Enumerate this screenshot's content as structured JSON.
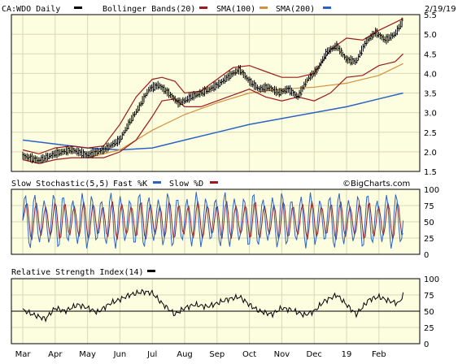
{
  "header": {
    "symbol": "CA:WDO Daily",
    "legend": [
      "Bollinger Bands(20)",
      "SMA(100)",
      "SMA(200)"
    ],
    "date": "2/19/19"
  },
  "colors": {
    "panel_bg": "#fdfde0",
    "grid": "#d8d8b8",
    "price": "#000000",
    "bollinger": "#9b1b1b",
    "sma100": "#d2913c",
    "sma200": "#2b63c4",
    "fast_k": "#2b63c4",
    "slow_d": "#9b1b1b",
    "rsi": "#000000"
  },
  "stoch_panel": {
    "title": "Slow Stochastic(5,5)",
    "fast_label": "Fast %K",
    "slow_label": "Slow %D",
    "watermark": "©BigCharts.com"
  },
  "rsi_panel": {
    "title": "Relative Strength Index(14)"
  },
  "chart_data": [
    {
      "type": "line",
      "title": "CA:WDO Daily",
      "x_labels": [
        "Mar",
        "Apr",
        "May",
        "Jun",
        "Jul",
        "Aug",
        "Sep",
        "Oct",
        "Nov",
        "Dec",
        "19",
        "Feb"
      ],
      "ylim": [
        1.5,
        5.5
      ],
      "yticks": [
        "5.5",
        "5.0",
        "4.5",
        "4.0",
        "3.5",
        "3.0",
        "2.5",
        "2.0",
        "1.5"
      ],
      "grid": true,
      "series": [
        {
          "name": "CA:WDO Daily",
          "style": "ohlc",
          "x_months": [
            0,
            0.5,
            1.0,
            1.5,
            2.0,
            2.5,
            3.0,
            3.3,
            3.6,
            3.9,
            4.2,
            4.5,
            4.8,
            5.0,
            5.2,
            5.5,
            5.8,
            6.1,
            6.4,
            6.7,
            7.0,
            7.3,
            7.6,
            7.9,
            8.2,
            8.5,
            8.8,
            9.1,
            9.4,
            9.7,
            10.0,
            10.3,
            10.6,
            10.9,
            11.2,
            11.5,
            11.75
          ],
          "values": [
            1.9,
            1.78,
            1.95,
            2.05,
            1.92,
            2.05,
            2.3,
            2.75,
            3.15,
            3.6,
            3.7,
            3.5,
            3.25,
            3.3,
            3.4,
            3.5,
            3.6,
            3.75,
            3.95,
            4.1,
            3.8,
            3.6,
            3.65,
            3.5,
            3.6,
            3.4,
            3.85,
            4.1,
            4.55,
            4.7,
            4.35,
            4.3,
            4.8,
            5.05,
            4.85,
            5.0,
            5.35
          ]
        },
        {
          "name": "Bollinger Bands(20) upper",
          "x_months": [
            0,
            0.5,
            1.0,
            1.5,
            2.0,
            2.5,
            3.0,
            3.5,
            4.0,
            4.3,
            4.7,
            5.0,
            5.5,
            6.0,
            6.5,
            7.0,
            7.5,
            8.0,
            8.5,
            9.0,
            9.5,
            10.0,
            10.5,
            11.0,
            11.5,
            11.75
          ],
          "values": [
            2.05,
            1.95,
            2.1,
            2.15,
            2.1,
            2.15,
            2.7,
            3.4,
            3.85,
            3.9,
            3.8,
            3.5,
            3.55,
            3.85,
            4.15,
            4.2,
            4.05,
            3.9,
            3.9,
            4.0,
            4.6,
            4.9,
            4.85,
            5.1,
            5.3,
            5.4
          ]
        },
        {
          "name": "Bollinger Bands(20) lower",
          "x_months": [
            0,
            0.5,
            1.0,
            1.5,
            2.0,
            2.5,
            3.0,
            3.5,
            4.0,
            4.3,
            4.7,
            5.0,
            5.5,
            6.0,
            6.5,
            7.0,
            7.5,
            8.0,
            8.5,
            9.0,
            9.5,
            10.0,
            10.5,
            11.0,
            11.5,
            11.75
          ],
          "values": [
            1.8,
            1.7,
            1.8,
            1.85,
            1.85,
            1.85,
            2.0,
            2.3,
            2.9,
            3.3,
            3.35,
            3.15,
            3.15,
            3.3,
            3.45,
            3.6,
            3.4,
            3.3,
            3.4,
            3.3,
            3.5,
            3.9,
            3.95,
            4.2,
            4.3,
            4.5
          ]
        },
        {
          "name": "SMA(100)",
          "x_months": [
            2.0,
            3.0,
            4.0,
            5.0,
            6.0,
            7.0,
            8.0,
            9.0,
            10.0,
            11.0,
            11.75
          ],
          "values": [
            1.85,
            2.05,
            2.55,
            2.95,
            3.25,
            3.5,
            3.6,
            3.65,
            3.75,
            3.95,
            4.25
          ]
        },
        {
          "name": "SMA(200)",
          "x_months": [
            0,
            1.0,
            2.0,
            3.0,
            4.0,
            5.0,
            6.0,
            7.0,
            8.0,
            9.0,
            10.0,
            11.0,
            11.75
          ],
          "values": [
            2.3,
            2.2,
            2.1,
            2.05,
            2.1,
            2.3,
            2.5,
            2.7,
            2.85,
            3.0,
            3.15,
            3.35,
            3.5
          ]
        }
      ]
    },
    {
      "type": "line",
      "title": "Slow Stochastic(5,5)",
      "ylim": [
        0,
        100
      ],
      "yticks": [
        "100",
        "75",
        "50",
        "25",
        "0"
      ],
      "oscillation": {
        "cycles": 40,
        "min": 8,
        "max": 96
      },
      "series": [
        {
          "name": "Fast %K"
        },
        {
          "name": "Slow %D"
        }
      ]
    },
    {
      "type": "line",
      "title": "Relative Strength Index(14)",
      "ylim": [
        0,
        100
      ],
      "yticks": [
        "100",
        "75",
        "50",
        "25",
        "0"
      ],
      "reference_line": 50,
      "series": [
        {
          "name": "Relative Strength Index(14)",
          "x_months": [
            0,
            0.3,
            0.7,
            1.0,
            1.3,
            1.7,
            2.0,
            2.3,
            2.7,
            3.0,
            3.3,
            3.7,
            4.0,
            4.3,
            4.7,
            5.0,
            5.3,
            5.7,
            6.0,
            6.3,
            6.7,
            7.0,
            7.3,
            7.7,
            8.0,
            8.3,
            8.7,
            9.0,
            9.3,
            9.7,
            10.0,
            10.3,
            10.7,
            11.0,
            11.3,
            11.6,
            11.75
          ],
          "values": [
            52,
            45,
            38,
            55,
            50,
            60,
            55,
            48,
            62,
            68,
            75,
            80,
            78,
            62,
            45,
            55,
            60,
            57,
            62,
            68,
            72,
            60,
            50,
            45,
            55,
            52,
            44,
            50,
            65,
            75,
            60,
            45,
            68,
            72,
            66,
            62,
            74
          ]
        }
      ]
    }
  ]
}
